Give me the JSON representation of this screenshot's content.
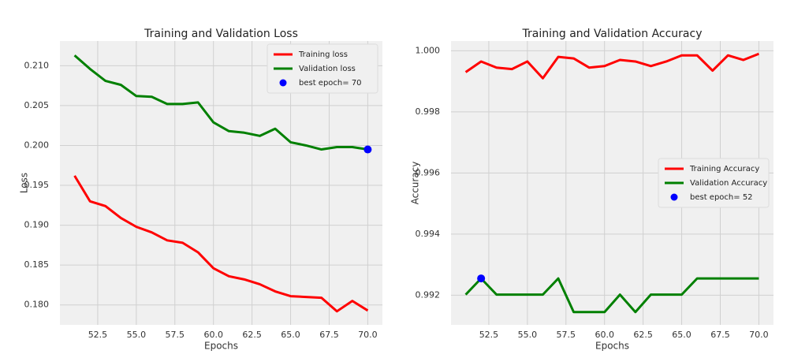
{
  "chart_data": [
    {
      "type": "line",
      "title": "Training and Validation Loss",
      "x_label": "Epochs",
      "y_label": "Loss",
      "x": [
        51,
        52,
        53,
        54,
        55,
        56,
        57,
        58,
        59,
        60,
        61,
        62,
        63,
        64,
        65,
        66,
        67,
        68,
        69,
        70
      ],
      "series": [
        {
          "name": "Training loss",
          "color": "#ff0000",
          "values": [
            0.1962,
            0.193,
            0.1924,
            0.1909,
            0.1898,
            0.1891,
            0.1881,
            0.1878,
            0.1866,
            0.1846,
            0.1836,
            0.1832,
            0.1826,
            0.1817,
            0.1811,
            0.181,
            0.1809,
            0.1792,
            0.1805,
            0.1793
          ]
        },
        {
          "name": "Validation loss",
          "color": "#008000",
          "values": [
            0.2113,
            0.2096,
            0.2081,
            0.2076,
            0.2062,
            0.2061,
            0.2052,
            0.2052,
            0.2054,
            0.2029,
            0.2018,
            0.2016,
            0.2012,
            0.2021,
            0.2004,
            0.2,
            0.1995,
            0.1998,
            0.1998,
            0.1995
          ]
        },
        {
          "name": "best epoch= 70",
          "color": "#0000ff",
          "type": "scatter",
          "x": [
            70
          ],
          "values": [
            0.1995
          ]
        }
      ],
      "xlim": [
        50.05,
        70.95
      ],
      "xticks": [
        52.5,
        {
          "value": 55,
          "label": "55.0"
        },
        57.5,
        {
          "value": 60,
          "label": "60.0"
        },
        62.5,
        {
          "value": 65,
          "label": "65.0"
        },
        67.5,
        {
          "value": 70,
          "label": "70.0"
        }
      ],
      "ylim": [
        0.1775,
        0.2131
      ],
      "yticks": [
        {
          "value": 0.18,
          "label": "0.180"
        },
        0.185,
        {
          "value": 0.19,
          "label": "0.190"
        },
        0.195,
        {
          "value": 0.2,
          "label": "0.200"
        },
        0.205,
        {
          "value": 0.21,
          "label": "0.210"
        }
      ],
      "grid": true,
      "legend": "upper right"
    },
    {
      "type": "line",
      "title": "Training and Validation Accuracy",
      "x_label": "Epochs",
      "y_label": "Accuracy",
      "x": [
        51,
        52,
        53,
        54,
        55,
        56,
        57,
        58,
        59,
        60,
        61,
        62,
        63,
        64,
        65,
        66,
        67,
        68,
        69,
        70
      ],
      "series": [
        {
          "name": "Training Accuracy",
          "color": "#ff0000",
          "values": [
            0.9993,
            0.99965,
            0.99945,
            0.9994,
            0.99965,
            0.9991,
            0.9998,
            0.99975,
            0.99945,
            0.9995,
            0.9997,
            0.99965,
            0.9995,
            0.99965,
            0.99985,
            0.99985,
            0.99935,
            0.99985,
            0.9997,
            0.9999
          ]
        },
        {
          "name": "Validation Accuracy",
          "color": "#008000",
          "values": [
            0.99202,
            0.99255,
            0.99202,
            0.99202,
            0.99202,
            0.99202,
            0.99255,
            0.99145,
            0.99145,
            0.99145,
            0.99202,
            0.99145,
            0.99202,
            0.99202,
            0.99202,
            0.99255,
            0.99255,
            0.99255,
            0.99255,
            0.99255
          ]
        },
        {
          "name": "best epoch= 52",
          "color": "#0000ff",
          "type": "scatter",
          "x": [
            52
          ],
          "values": [
            0.99255
          ]
        }
      ],
      "xlim": [
        50.05,
        70.95
      ],
      "xticks": [
        52.5,
        {
          "value": 55,
          "label": "55.0"
        },
        57.5,
        {
          "value": 60,
          "label": "60.0"
        },
        62.5,
        {
          "value": 65,
          "label": "65.0"
        },
        67.5,
        {
          "value": 70,
          "label": "70.0"
        }
      ],
      "ylim": [
        0.99103,
        1.00032
      ],
      "yticks": [
        0.992,
        0.994,
        0.996,
        0.998,
        {
          "value": 1,
          "label": "1.000"
        }
      ],
      "grid": true,
      "legend": "center right"
    }
  ]
}
